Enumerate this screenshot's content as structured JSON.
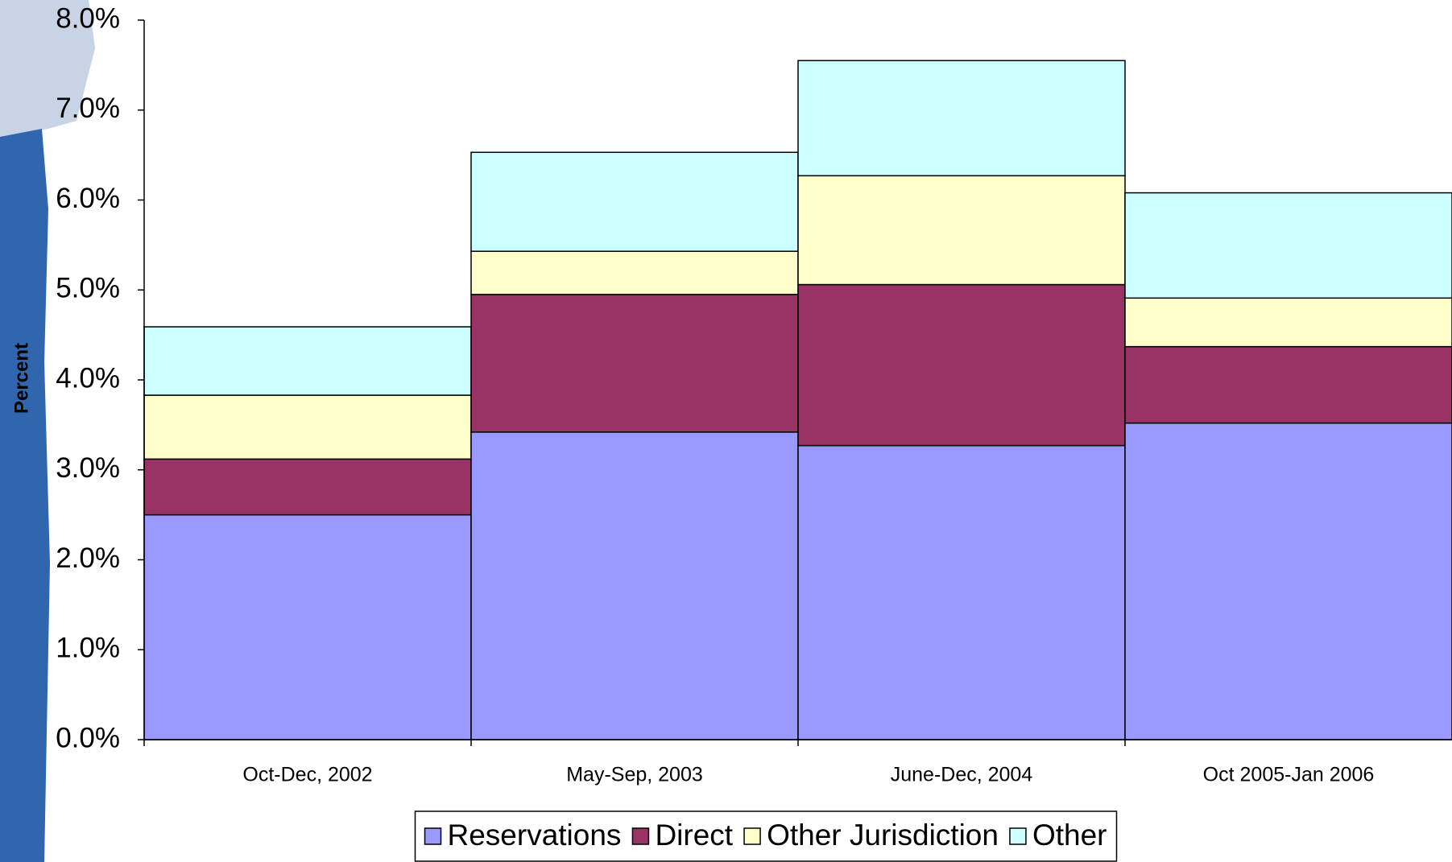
{
  "chart_data": {
    "type": "stacked_bar",
    "y_label": "Percent",
    "categories": [
      "Oct-Dec, 2002",
      "May-Sep, 2003",
      "June-Dec, 2004",
      "Oct 2005-Jan 2006"
    ],
    "series": [
      {
        "name": "Reservations",
        "color": "#9999ff",
        "values": [
          2.5,
          3.42,
          3.27,
          3.52
        ]
      },
      {
        "name": "Direct",
        "color": "#993366",
        "values": [
          0.62,
          1.53,
          1.79,
          0.85
        ]
      },
      {
        "name": "Other Jurisdiction",
        "color": "#ffffcc",
        "values": [
          0.71,
          0.48,
          1.21,
          0.54
        ]
      },
      {
        "name": "Other",
        "color": "#ccffff",
        "values": [
          0.76,
          1.1,
          1.28,
          1.17
        ]
      }
    ],
    "ylim": [
      0,
      8
    ],
    "yticks": [
      {
        "value": 0,
        "label": "0.0%"
      },
      {
        "value": 1,
        "label": "1.0%"
      },
      {
        "value": 2,
        "label": "2.0%"
      },
      {
        "value": 3,
        "label": "3.0%"
      },
      {
        "value": 4,
        "label": "4.0%"
      },
      {
        "value": 5,
        "label": "5.0%"
      },
      {
        "value": 6,
        "label": "6.0%"
      },
      {
        "value": 7,
        "label": "7.0%"
      },
      {
        "value": 8,
        "label": "8.0%"
      }
    ],
    "legend": "bottom"
  }
}
